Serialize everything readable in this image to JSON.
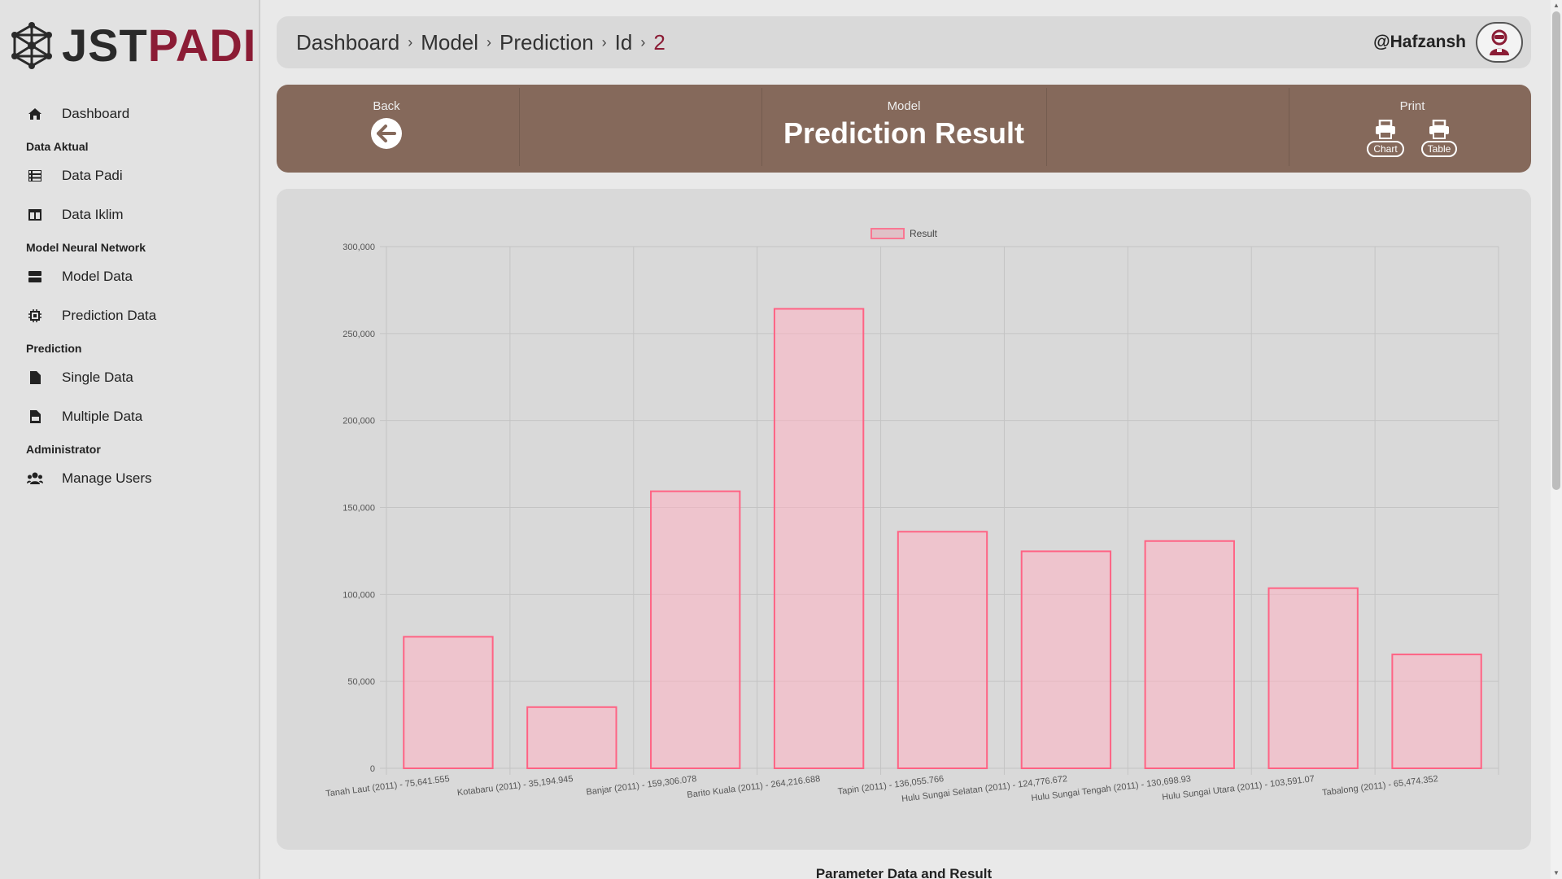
{
  "brand": {
    "part1": "JST",
    "part2": "PADI",
    "colors": {
      "dark": "#2a2a2a",
      "accent": "#8b1c35"
    }
  },
  "sidebar": {
    "dashboard": {
      "label": "Dashboard",
      "icon": "home-icon"
    },
    "sections": [
      {
        "title": "Data Aktual",
        "items": [
          {
            "label": "Data Padi",
            "icon": "table-list-icon"
          },
          {
            "label": "Data Iklim",
            "icon": "table-columns-icon"
          }
        ]
      },
      {
        "title": "Model Neural Network",
        "items": [
          {
            "label": "Model Data",
            "icon": "server-icon"
          },
          {
            "label": "Prediction Data",
            "icon": "chip-icon"
          }
        ]
      },
      {
        "title": "Prediction",
        "items": [
          {
            "label": "Single Data",
            "icon": "file-icon"
          },
          {
            "label": "Multiple Data",
            "icon": "file-csv-icon"
          }
        ]
      },
      {
        "title": "Administrator",
        "items": [
          {
            "label": "Manage Users",
            "icon": "users-icon"
          }
        ]
      }
    ]
  },
  "breadcrumb": {
    "items": [
      "Dashboard",
      "Model",
      "Prediction",
      "Id"
    ],
    "current": "2"
  },
  "user": {
    "name": "@Hafzansh",
    "avatar_icon": "user-robot-icon"
  },
  "banner": {
    "back_label": "Back",
    "model_label": "Model",
    "title": "Prediction Result",
    "print_label": "Print",
    "print_chart": "Chart",
    "print_table": "Table",
    "bg_color": "#85695b"
  },
  "chart_data": {
    "type": "bar",
    "legend": [
      "Result"
    ],
    "legend_placement": "top-center",
    "grid": true,
    "ylim": [
      0,
      300000
    ],
    "yticks": [
      "0",
      "50,000",
      "100,000",
      "150,000",
      "200,000",
      "250,000",
      "300,000"
    ],
    "categories": [
      "Tanah Laut (2011) - 75,641.555",
      "Kotabaru (2011) - 35,194.945",
      "Banjar (2011) - 159,306.078",
      "Barito Kuala (2011) - 264,216.688",
      "Tapin (2011) - 136,055.766",
      "Hulu Sungai Selatan (2011) - 124,776.672",
      "Hulu Sungai Tengah (2011) - 130,698.93",
      "Hulu Sungai Utara (2011) - 103,591.07",
      "Tabalong (2011) - 65,474.352"
    ],
    "series": [
      {
        "name": "Result",
        "values": [
          75641.555,
          35194.945,
          159306.078,
          264216.688,
          136055.766,
          124776.672,
          130698.93,
          103591.07,
          65474.352
        ]
      }
    ],
    "colors": {
      "fill": "#ffb3c2",
      "stroke": "#ff6384",
      "grid": "#c4c4c4"
    }
  },
  "below": {
    "section_title": "Parameter Data and Result"
  }
}
